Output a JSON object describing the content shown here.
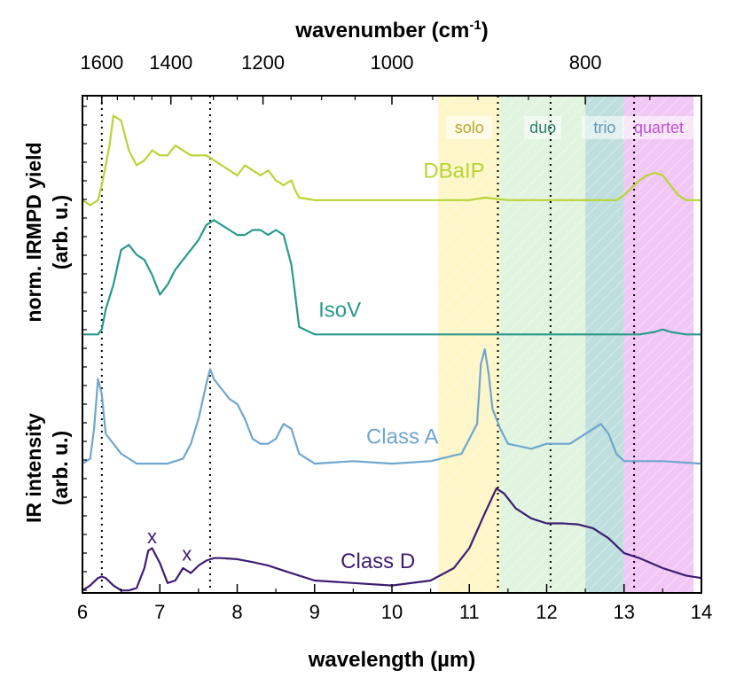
{
  "chart_data": {
    "type": "line",
    "title": "",
    "xlabel": "wavelength (µm)",
    "xlabel_top_main": "wavenumber (cm",
    "xlabel_top_sup": "-1",
    "xlabel_top_close": ")",
    "ylabel_upper_line1": "norm. IRMPD yield",
    "ylabel_upper_line2": "(arb. u.)",
    "ylabel_lower_line1": "IR intensity",
    "ylabel_lower_line2": "(arb. u.)",
    "xlim": [
      6,
      14
    ],
    "ylim": [
      0,
      1
    ],
    "grid": false,
    "x_ticks": [
      "6",
      "7",
      "8",
      "9",
      "10",
      "11",
      "12",
      "13",
      "14"
    ],
    "top_ticks": [
      "1600",
      "1400",
      "1200",
      "1000",
      "800"
    ],
    "bands": [
      {
        "label": "solo",
        "start": 10.6,
        "end": 11.4,
        "color": "#fbf3b5",
        "text_color": "#b7a82e"
      },
      {
        "label": "duo",
        "start": 11.4,
        "end": 12.5,
        "color": "#d6f0d6",
        "text_color": "#2f7f6a"
      },
      {
        "label": "trio",
        "start": 12.5,
        "end": 13.0,
        "color": "#a8d4d2",
        "text_color": "#5f98b9"
      },
      {
        "label": "quartet",
        "start": 13.0,
        "end": 13.9,
        "color": "#ecb4f2",
        "text_color": "#c04fd0"
      }
    ],
    "marker_lines_x": [
      6.25,
      7.65,
      11.37,
      12.05,
      13.13
    ],
    "annotations": [
      {
        "text": "x",
        "x": 6.9,
        "y": 0.1,
        "color": "#3d1d72"
      },
      {
        "text": "x",
        "x": 7.35,
        "y": 0.065,
        "color": "#3d1d72"
      }
    ],
    "series": [
      {
        "name": "DBaIP",
        "color": "#b8d435",
        "x": [
          6.0,
          6.1,
          6.2,
          6.25,
          6.3,
          6.35,
          6.4,
          6.5,
          6.55,
          6.6,
          6.7,
          6.8,
          6.9,
          7.0,
          7.1,
          7.2,
          7.3,
          7.4,
          7.5,
          7.6,
          7.7,
          7.8,
          7.9,
          8.0,
          8.1,
          8.2,
          8.3,
          8.4,
          8.5,
          8.6,
          8.7,
          8.75,
          8.8,
          9.0,
          9.5,
          10.0,
          10.5,
          11.0,
          11.2,
          11.5,
          12.0,
          12.5,
          12.9,
          13.0,
          13.1,
          13.2,
          13.3,
          13.4,
          13.5,
          13.6,
          13.7,
          13.8,
          14.0
        ],
        "y": [
          0.79,
          0.78,
          0.79,
          0.82,
          0.86,
          0.9,
          0.96,
          0.95,
          0.92,
          0.89,
          0.86,
          0.87,
          0.89,
          0.88,
          0.88,
          0.9,
          0.89,
          0.88,
          0.88,
          0.88,
          0.87,
          0.86,
          0.85,
          0.84,
          0.86,
          0.85,
          0.84,
          0.85,
          0.83,
          0.82,
          0.83,
          0.81,
          0.795,
          0.79,
          0.79,
          0.79,
          0.79,
          0.79,
          0.795,
          0.79,
          0.79,
          0.79,
          0.79,
          0.8,
          0.815,
          0.83,
          0.84,
          0.845,
          0.84,
          0.82,
          0.8,
          0.79,
          0.79
        ]
      },
      {
        "name": "IsoV",
        "color": "#2a9a8a",
        "x": [
          6.0,
          6.1,
          6.2,
          6.25,
          6.3,
          6.4,
          6.5,
          6.6,
          6.7,
          6.8,
          6.9,
          7.0,
          7.1,
          7.2,
          7.3,
          7.4,
          7.5,
          7.6,
          7.7,
          7.8,
          7.9,
          8.0,
          8.1,
          8.2,
          8.3,
          8.4,
          8.5,
          8.6,
          8.7,
          8.75,
          8.8,
          9.0,
          9.5,
          10.0,
          10.5,
          11.0,
          11.5,
          12.0,
          12.5,
          13.0,
          13.2,
          13.4,
          13.5,
          13.6,
          13.8,
          14.0
        ],
        "y": [
          0.52,
          0.52,
          0.52,
          0.53,
          0.57,
          0.62,
          0.69,
          0.7,
          0.68,
          0.67,
          0.64,
          0.6,
          0.62,
          0.65,
          0.67,
          0.69,
          0.71,
          0.74,
          0.75,
          0.74,
          0.73,
          0.72,
          0.72,
          0.73,
          0.73,
          0.72,
          0.73,
          0.72,
          0.66,
          0.6,
          0.535,
          0.52,
          0.52,
          0.52,
          0.52,
          0.52,
          0.52,
          0.52,
          0.52,
          0.52,
          0.52,
          0.525,
          0.53,
          0.525,
          0.52,
          0.52
        ]
      },
      {
        "name": "Class A",
        "color": "#6fa6ce",
        "x": [
          6.0,
          6.1,
          6.15,
          6.2,
          6.25,
          6.3,
          6.4,
          6.5,
          6.6,
          6.7,
          6.8,
          6.9,
          7.0,
          7.1,
          7.2,
          7.3,
          7.4,
          7.5,
          7.6,
          7.65,
          7.7,
          7.8,
          7.9,
          8.0,
          8.1,
          8.2,
          8.3,
          8.4,
          8.5,
          8.6,
          8.7,
          8.8,
          9.0,
          9.5,
          10.0,
          10.5,
          10.9,
          11.0,
          11.1,
          11.15,
          11.2,
          11.25,
          11.3,
          11.4,
          11.5,
          11.8,
          12.0,
          12.3,
          12.6,
          12.7,
          12.8,
          12.9,
          13.0,
          13.5,
          14.0
        ],
        "y": [
          0.26,
          0.27,
          0.33,
          0.43,
          0.4,
          0.32,
          0.3,
          0.28,
          0.27,
          0.26,
          0.26,
          0.26,
          0.26,
          0.26,
          0.265,
          0.27,
          0.3,
          0.35,
          0.42,
          0.45,
          0.43,
          0.41,
          0.39,
          0.38,
          0.35,
          0.31,
          0.3,
          0.3,
          0.31,
          0.34,
          0.33,
          0.28,
          0.26,
          0.265,
          0.26,
          0.265,
          0.28,
          0.31,
          0.34,
          0.46,
          0.49,
          0.44,
          0.37,
          0.33,
          0.3,
          0.29,
          0.3,
          0.3,
          0.33,
          0.34,
          0.32,
          0.28,
          0.265,
          0.265,
          0.26
        ]
      },
      {
        "name": "Class D",
        "color": "#3d1d72",
        "x": [
          6.0,
          6.1,
          6.2,
          6.25,
          6.3,
          6.4,
          6.5,
          6.6,
          6.7,
          6.8,
          6.85,
          6.9,
          7.0,
          7.1,
          7.2,
          7.3,
          7.4,
          7.5,
          7.6,
          7.7,
          7.8,
          8.0,
          8.2,
          8.4,
          8.6,
          8.8,
          9.0,
          9.5,
          10.0,
          10.5,
          10.8,
          11.0,
          11.2,
          11.35,
          11.45,
          11.6,
          11.8,
          12.0,
          12.2,
          12.4,
          12.6,
          12.8,
          13.0,
          13.2,
          13.5,
          13.8,
          14.0
        ],
        "y": [
          0.005,
          0.015,
          0.03,
          0.033,
          0.03,
          0.015,
          0.005,
          0.005,
          0.01,
          0.05,
          0.085,
          0.09,
          0.06,
          0.02,
          0.025,
          0.05,
          0.04,
          0.055,
          0.065,
          0.07,
          0.07,
          0.068,
          0.062,
          0.055,
          0.045,
          0.035,
          0.025,
          0.02,
          0.015,
          0.025,
          0.05,
          0.09,
          0.16,
          0.21,
          0.2,
          0.17,
          0.15,
          0.14,
          0.14,
          0.138,
          0.13,
          0.11,
          0.08,
          0.07,
          0.05,
          0.035,
          0.03
        ]
      }
    ]
  }
}
